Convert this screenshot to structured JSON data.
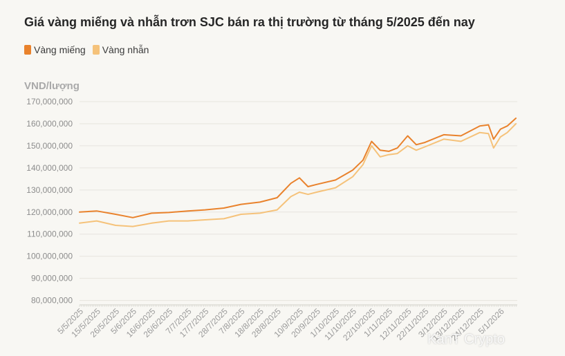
{
  "title": "Giá vàng miếng và nhẫn trơn SJC bán ra thị trường từ tháng 5/2025 đến nay",
  "watermark": "KanT Crypto",
  "chart_data": {
    "type": "line",
    "ylabel": "VND/lượng",
    "xlabel": "",
    "ylim": [
      78000000,
      170000000
    ],
    "yticks": [
      80000000,
      90000000,
      100000000,
      110000000,
      120000000,
      130000000,
      140000000,
      150000000,
      160000000,
      170000000
    ],
    "ytick_labels": [
      "80,000,000",
      "90,000,000",
      "100,000,000",
      "110,000,000",
      "120,000,000",
      "130,000,000",
      "140,000,000",
      "150,000,000",
      "160,000,000",
      "170,000,000"
    ],
    "grid": true,
    "legend": "top-left",
    "x_tick_labels": [
      "5/5/2025",
      "15/5/2025",
      "26/5/2025",
      "5/6/2025",
      "16/6/2025",
      "26/6/2025",
      "7/7/2025",
      "17/7/2025",
      "28/7/2025",
      "7/8/2025",
      "18/8/2025",
      "28/8/2025",
      "10/9/2025",
      "20/9/2025",
      "1/10/2025",
      "11/10/2025",
      "22/10/2025",
      "1/11/2025",
      "12/11/2025",
      "22/11/2025",
      "3/12/2025",
      "13/12/2025",
      "24/12/2025",
      "5/1/2026"
    ],
    "x": [
      "5/5/2025",
      "15/5/2025",
      "26/5/2025",
      "5/6/2025",
      "16/6/2025",
      "26/6/2025",
      "7/7/2025",
      "17/7/2025",
      "28/7/2025",
      "7/8/2025",
      "18/8/2025",
      "28/8/2025",
      "5/9/2025",
      "10/9/2025",
      "15/9/2025",
      "20/9/2025",
      "1/10/2025",
      "11/10/2025",
      "17/10/2025",
      "22/10/2025",
      "27/10/2025",
      "1/11/2025",
      "6/11/2025",
      "12/11/2025",
      "17/11/2025",
      "22/11/2025",
      "3/12/2025",
      "13/12/2025",
      "24/12/2025",
      "29/12/2025",
      "1/1/2026",
      "5/1/2026",
      "9/1/2026",
      "14/1/2026"
    ],
    "series": [
      {
        "name": "Vàng miếng",
        "color": "#e9822c",
        "values": [
          120000000,
          120500000,
          119000000,
          117500000,
          119500000,
          119800000,
          120500000,
          121000000,
          121800000,
          123500000,
          124500000,
          126500000,
          133000000,
          135500000,
          131500000,
          132500000,
          134500000,
          139000000,
          143500000,
          152000000,
          148000000,
          147500000,
          149000000,
          154500000,
          150500000,
          151500000,
          155000000,
          154500000,
          159000000,
          159500000,
          153000000,
          157500000,
          159000000,
          162500000
        ]
      },
      {
        "name": "Vàng nhẫn",
        "color": "#f5c27a",
        "values": [
          115000000,
          116000000,
          114000000,
          113500000,
          115000000,
          116000000,
          116000000,
          116500000,
          117000000,
          119000000,
          119500000,
          121000000,
          127000000,
          129000000,
          128000000,
          129000000,
          131000000,
          136000000,
          141500000,
          150000000,
          145000000,
          146000000,
          146500000,
          150000000,
          148000000,
          149500000,
          153000000,
          152000000,
          156000000,
          155500000,
          149000000,
          154000000,
          156000000,
          160000000
        ]
      }
    ]
  }
}
